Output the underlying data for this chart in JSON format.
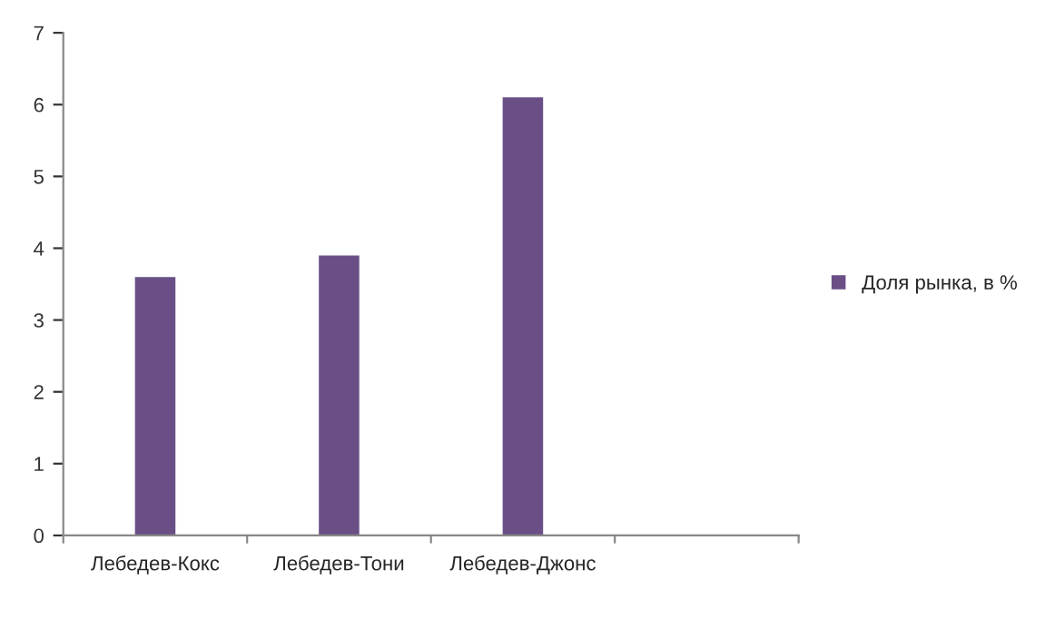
{
  "chart_data": {
    "type": "bar",
    "categories": [
      "Лебедев-Кокс",
      "Лебедев-Тони",
      "Лебедев-Джонс",
      null
    ],
    "series": [
      {
        "name": "Доля рынка, в %",
        "color": "#6a4f87",
        "values": [
          3.6,
          3.9,
          6.1,
          null
        ]
      }
    ],
    "ylim": [
      0,
      7
    ],
    "yticks": [
      0,
      1,
      2,
      3,
      4,
      5,
      6,
      7
    ],
    "grid": false,
    "legend": "right"
  }
}
